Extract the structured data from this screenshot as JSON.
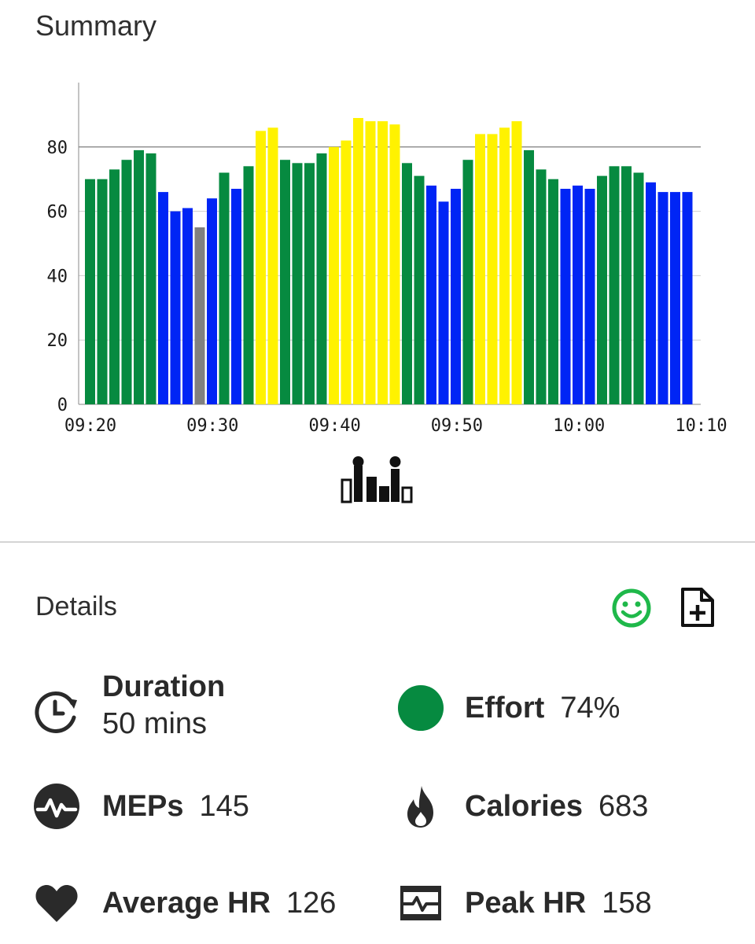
{
  "summary": {
    "title": "Summary"
  },
  "chart_data": {
    "type": "bar",
    "title": "",
    "xlabel": "",
    "ylabel": "",
    "ylim": [
      0,
      100
    ],
    "yticks": [
      0,
      20,
      40,
      60,
      80
    ],
    "gridline": 80,
    "xticks": [
      "09:20",
      "09:30",
      "09:40",
      "09:50",
      "10:00",
      "10:10"
    ],
    "colors": {
      "green": "#068a40",
      "blue": "#0025f5",
      "yellow": "#fff200",
      "gray": "#808080"
    },
    "values": [
      70,
      70,
      73,
      76,
      79,
      78,
      66,
      60,
      61,
      55,
      64,
      72,
      67,
      74,
      85,
      86,
      76,
      75,
      75,
      78,
      80,
      82,
      89,
      88,
      88,
      87,
      75,
      71,
      68,
      63,
      67,
      76,
      84,
      84,
      86,
      88,
      79,
      73,
      70,
      67,
      68,
      67,
      71,
      74,
      74,
      72,
      69,
      66,
      66,
      66
    ],
    "zones": [
      "green",
      "green",
      "green",
      "green",
      "green",
      "green",
      "blue",
      "blue",
      "blue",
      "gray",
      "blue",
      "green",
      "blue",
      "green",
      "yellow",
      "yellow",
      "green",
      "green",
      "green",
      "green",
      "yellow",
      "yellow",
      "yellow",
      "yellow",
      "yellow",
      "yellow",
      "green",
      "green",
      "blue",
      "blue",
      "blue",
      "green",
      "yellow",
      "yellow",
      "yellow",
      "yellow",
      "green",
      "green",
      "green",
      "blue",
      "blue",
      "blue",
      "green",
      "green",
      "green",
      "green",
      "blue",
      "blue",
      "blue",
      "blue"
    ]
  },
  "chart_toggle": {
    "icon": "heart-zone-chart-icon"
  },
  "details": {
    "title": "Details",
    "mood_icon": "smiley-icon",
    "add_note_icon": "add-note-icon",
    "mood_color": "#1fb84a"
  },
  "stats": {
    "duration": {
      "label": "Duration",
      "value": "50 mins",
      "icon": "clock-icon"
    },
    "effort": {
      "label": "Effort",
      "value": "74%",
      "icon": "effort-dot-icon",
      "color": "#068a40"
    },
    "meps": {
      "label": "MEPs",
      "value": "145",
      "icon": "meps-icon"
    },
    "calories": {
      "label": "Calories",
      "value": "683",
      "icon": "flame-icon"
    },
    "average_hr": {
      "label": "Average HR",
      "value": "126",
      "icon": "heart-icon"
    },
    "peak_hr": {
      "label": "Peak HR",
      "value": "158",
      "icon": "peak-hr-icon"
    }
  }
}
